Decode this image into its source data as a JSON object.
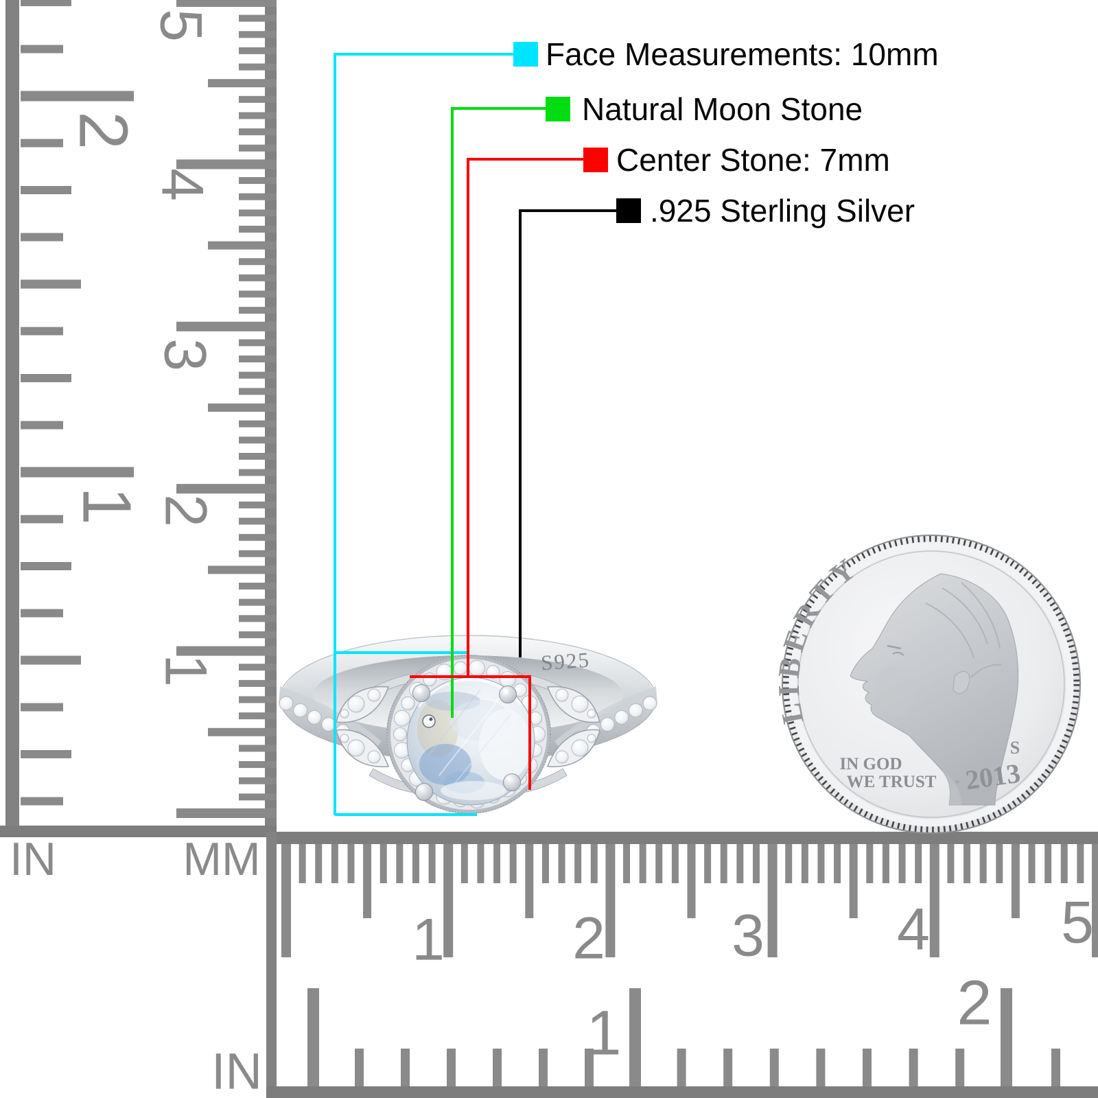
{
  "page": {
    "background": "#ffffff"
  },
  "annotations": {
    "items": [
      {
        "name": "face-measurements",
        "label": "Face Measurements: 10mm",
        "color": "#00e5ff"
      },
      {
        "name": "natural-moon-stone",
        "label": "Natural Moon Stone",
        "color": "#00dd12"
      },
      {
        "name": "center-stone",
        "label": "Center Stone: 7mm",
        "color": "#fb0300"
      },
      {
        "name": "sterling-silver",
        "label": ".925 Sterling Silver",
        "color": "#000000"
      }
    ]
  },
  "rulers": {
    "vertical_inch": {
      "unit": "IN",
      "numbers": [
        "2",
        "1"
      ]
    },
    "vertical_cm": {
      "unit": "MM",
      "numbers": [
        "5",
        "4",
        "3",
        "2",
        "1"
      ]
    },
    "horizontal_cm": {
      "numbers": [
        "1",
        "2",
        "3",
        "4",
        "5"
      ]
    },
    "horizontal_inch": {
      "unit": "IN",
      "numbers": [
        "1",
        "2"
      ]
    }
  },
  "ring": {
    "engraving": "S925"
  },
  "coin": {
    "legend": "LIBERTY",
    "motto_line1": "IN GOD",
    "motto_line2": "WE TRUST",
    "mint_mark": "S",
    "date": "2013"
  }
}
